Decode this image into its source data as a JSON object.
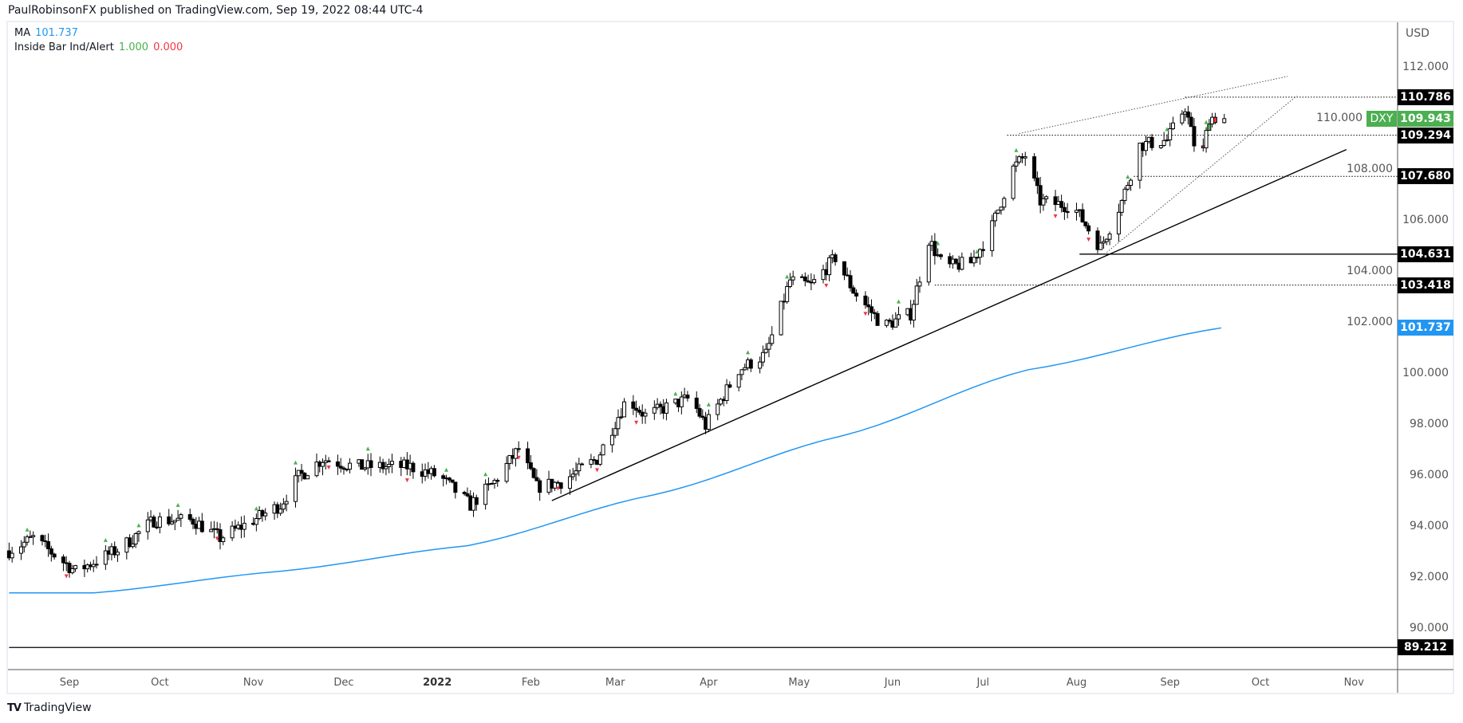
{
  "header": {
    "publisher": "PaulRobinsonFX published on TradingView.com, Sep 19, 2022 08:44 UTC-4"
  },
  "legend": {
    "ma_label": "MA",
    "ma_value": "101.737",
    "ib_label": "Inside Bar Ind/Alert",
    "ib_value1": "1.000",
    "ib_value2": "0.000"
  },
  "footer": {
    "logo_text": "TradingView"
  },
  "colors": {
    "ma": "#2196f3",
    "up_marker": "#4caf50",
    "down_marker": "#f23645",
    "symbol_badge": "#4caf50"
  },
  "chart_data": {
    "type": "candlestick",
    "symbol": "DXY",
    "currency": "USD",
    "last_price": "109.943",
    "x_unit": "days since 2021-09-01",
    "xlim": [
      -20,
      440
    ],
    "ylim": [
      88.4,
      113.8
    ],
    "x_ticks": [
      {
        "day": 0,
        "label": "Sep",
        "bold": false
      },
      {
        "day": 30,
        "label": "Oct",
        "bold": false
      },
      {
        "day": 61,
        "label": "Nov",
        "bold": false
      },
      {
        "day": 91,
        "label": "Dec",
        "bold": false
      },
      {
        "day": 122,
        "label": "2022",
        "bold": true
      },
      {
        "day": 153,
        "label": "Feb",
        "bold": false
      },
      {
        "day": 181,
        "label": "Mar",
        "bold": false
      },
      {
        "day": 212,
        "label": "Apr",
        "bold": false
      },
      {
        "day": 242,
        "label": "May",
        "bold": false
      },
      {
        "day": 273,
        "label": "Jun",
        "bold": false
      },
      {
        "day": 303,
        "label": "Jul",
        "bold": false
      },
      {
        "day": 334,
        "label": "Aug",
        "bold": false
      },
      {
        "day": 365,
        "label": "Sep",
        "bold": false
      },
      {
        "day": 395,
        "label": "Oct",
        "bold": false
      },
      {
        "day": 426,
        "label": "Nov",
        "bold": false
      }
    ],
    "y_ticks": [
      "112.000",
      "110.000",
      "108.000",
      "106.000",
      "104.000",
      "102.000",
      "100.000",
      "98.000",
      "96.000",
      "94.000",
      "92.000",
      "90.000"
    ],
    "price_path": [
      [
        -20,
        93.0
      ],
      [
        -12,
        93.5
      ],
      [
        2,
        92.2
      ],
      [
        17,
        93.1
      ],
      [
        28,
        94.2
      ],
      [
        41,
        94.2
      ],
      [
        50,
        93.5
      ],
      [
        61,
        94.2
      ],
      [
        70,
        94.8
      ],
      [
        76,
        95.9
      ],
      [
        84,
        96.6
      ],
      [
        95,
        96.3
      ],
      [
        113,
        96.3
      ],
      [
        123,
        95.9
      ],
      [
        133,
        94.8
      ],
      [
        141,
        95.7
      ],
      [
        149,
        97.0
      ],
      [
        155,
        95.5
      ],
      [
        163,
        95.7
      ],
      [
        175,
        96.6
      ],
      [
        185,
        99.0
      ],
      [
        191,
        98.3
      ],
      [
        206,
        99.0
      ],
      [
        211,
        97.9
      ],
      [
        222,
        100.1
      ],
      [
        231,
        100.7
      ],
      [
        239,
        103.6
      ],
      [
        246,
        103.4
      ],
      [
        254,
        104.5
      ],
      [
        260,
        103.2
      ],
      [
        270,
        101.8
      ],
      [
        279,
        102.3
      ],
      [
        285,
        105.2
      ],
      [
        290,
        104.1
      ],
      [
        299,
        104.3
      ],
      [
        305,
        105.4
      ],
      [
        313,
        108.0
      ],
      [
        317,
        108.5
      ],
      [
        322,
        106.7
      ],
      [
        333,
        106.5
      ],
      [
        342,
        104.9
      ],
      [
        349,
        106.7
      ],
      [
        355,
        108.9
      ],
      [
        364,
        109.1
      ],
      [
        370,
        110.4
      ],
      [
        375,
        108.0
      ],
      [
        378,
        110.0
      ],
      [
        383,
        109.94
      ]
    ],
    "moving_average": {
      "name": "MA",
      "value": "101.737",
      "points": [
        [
          -20,
          91.35
        ],
        [
          8,
          91.35
        ],
        [
          70,
          92.2
        ],
        [
          132,
          93.2
        ],
        [
          194,
          95.2
        ],
        [
          256,
          97.5
        ],
        [
          318,
          100.1
        ],
        [
          382,
          101.74
        ]
      ]
    },
    "levels": [
      {
        "price": 110.786,
        "label": "110.786",
        "from_day": 370,
        "style": "dotted"
      },
      {
        "price": 109.294,
        "label": "109.294",
        "from_day": 311,
        "style": "dotted"
      },
      {
        "price": 107.68,
        "label": "107.680",
        "from_day": 353,
        "style": "dotted"
      },
      {
        "price": 104.631,
        "label": "104.631",
        "from_day": 335,
        "style": "solid"
      },
      {
        "price": 103.418,
        "label": "103.418",
        "from_day": 287,
        "style": "dotted"
      },
      {
        "price": 89.212,
        "label": "89.212",
        "from_day": -20,
        "style": "solid"
      }
    ],
    "trendlines": [
      {
        "name": "support-trendline",
        "from": [
          160,
          94.97
        ],
        "to": [
          423.5,
          108.73
        ],
        "style": "solid"
      },
      {
        "name": "upper-wedge-line",
        "from": [
          315,
          109.36
        ],
        "to": [
          404,
          111.6
        ],
        "style": "dotted"
      },
      {
        "name": "lower-wedge-line",
        "from": [
          344,
          104.7
        ],
        "to": [
          407,
          110.83
        ],
        "style": "dotted"
      }
    ]
  }
}
